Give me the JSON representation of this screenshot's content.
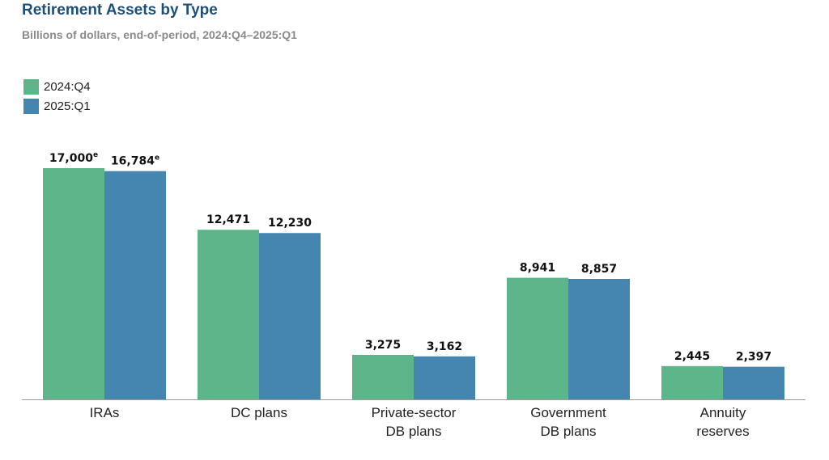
{
  "title": "Retirement Assets by Type",
  "subtitle": "Billions of dollars, end-of-period, 2024:Q4–2025:Q1",
  "legend": [
    {
      "label": "2024:Q4",
      "color": "#5db58a"
    },
    {
      "label": "2025:Q1",
      "color": "#4486b0"
    }
  ],
  "chart_data": {
    "type": "bar",
    "title": "Retirement Assets by Type",
    "subtitle": "Billions of dollars, end-of-period, 2024:Q4–2025:Q1",
    "categories": [
      [
        "IRAs"
      ],
      [
        "DC plans"
      ],
      [
        "Private-sector",
        "DB plans"
      ],
      [
        "Government",
        "DB plans"
      ],
      [
        "Annuity",
        "reserves"
      ]
    ],
    "series": [
      {
        "name": "2024:Q4",
        "color": "#5db58a",
        "values": [
          17000,
          12471,
          3275,
          8941,
          2445
        ],
        "labels": [
          "17,000",
          "12,471",
          "3,275",
          "8,941",
          "2,445"
        ],
        "notes": [
          "e",
          "",
          "",
          "",
          ""
        ]
      },
      {
        "name": "2025:Q1",
        "color": "#4486b0",
        "values": [
          16784,
          12230,
          3162,
          8857,
          2397
        ],
        "labels": [
          "16,784",
          "12,230",
          "3,162",
          "8,857",
          "2,397"
        ],
        "notes": [
          "e",
          "",
          "",
          "",
          ""
        ]
      }
    ],
    "ylim": [
      0,
      17000
    ],
    "grid": false,
    "legend_position": "top-left"
  }
}
